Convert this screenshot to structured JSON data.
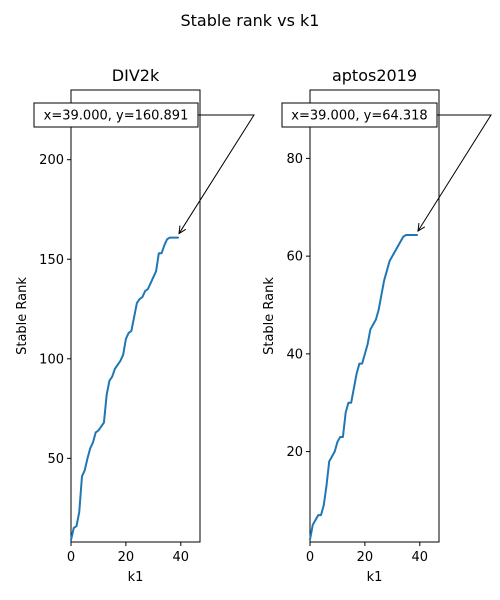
{
  "figure": {
    "suptitle": "Stable rank vs k1"
  },
  "chart_data": [
    {
      "type": "line",
      "title": "DIV2k",
      "xlabel": "k1",
      "ylabel": "Stable Rank",
      "xlim": [
        0,
        47
      ],
      "ylim": [
        8,
        235
      ],
      "xticks": [
        0,
        20,
        40
      ],
      "yticks": [
        50,
        100,
        150,
        200
      ],
      "grid": false,
      "color": "#1f77b4",
      "x": [
        0,
        1,
        2,
        3,
        4,
        5,
        6,
        7,
        8,
        9,
        10,
        11,
        12,
        13,
        14,
        15,
        16,
        17,
        18,
        19,
        20,
        21,
        22,
        23,
        24,
        25,
        26,
        27,
        28,
        29,
        30,
        31,
        32,
        33,
        34,
        35,
        36,
        37,
        38,
        39
      ],
      "y": [
        9,
        15,
        16,
        23,
        41,
        44,
        50,
        55,
        58,
        63,
        64,
        66,
        68,
        82,
        89,
        91,
        95,
        97,
        99,
        102,
        110,
        113,
        114,
        121,
        128,
        130,
        131,
        134,
        135,
        138,
        141,
        144,
        153,
        153,
        157,
        160,
        160.891,
        160.891,
        160.891,
        160.891
      ],
      "annotation": {
        "text": "x=39.000, y=160.891",
        "point_x": 39,
        "point_y": 160.891
      }
    },
    {
      "type": "line",
      "title": "aptos2019",
      "xlabel": "k1",
      "ylabel": "Stable Rank",
      "xlim": [
        0,
        47
      ],
      "ylim": [
        1.5,
        94
      ],
      "xticks": [
        0,
        20,
        40
      ],
      "yticks": [
        20,
        40,
        60,
        80
      ],
      "grid": false,
      "color": "#1f77b4",
      "x": [
        0,
        1,
        2,
        3,
        4,
        5,
        6,
        7,
        8,
        9,
        10,
        11,
        12,
        13,
        14,
        15,
        16,
        17,
        18,
        19,
        20,
        21,
        22,
        23,
        24,
        25,
        26,
        27,
        28,
        29,
        30,
        31,
        32,
        33,
        34,
        35,
        36,
        37,
        38,
        39
      ],
      "y": [
        2,
        5,
        6,
        7,
        7,
        9,
        13,
        18,
        19,
        20,
        22,
        23,
        23,
        28,
        30,
        30,
        33,
        36,
        38,
        38,
        40,
        42,
        45,
        46,
        47,
        49,
        52,
        55,
        57,
        59,
        60,
        61,
        62,
        63,
        64,
        64.318,
        64.318,
        64.318,
        64.318,
        64.318
      ],
      "annotation": {
        "text": "x=39.000, y=64.318",
        "point_x": 39,
        "point_y": 64.318
      }
    }
  ]
}
